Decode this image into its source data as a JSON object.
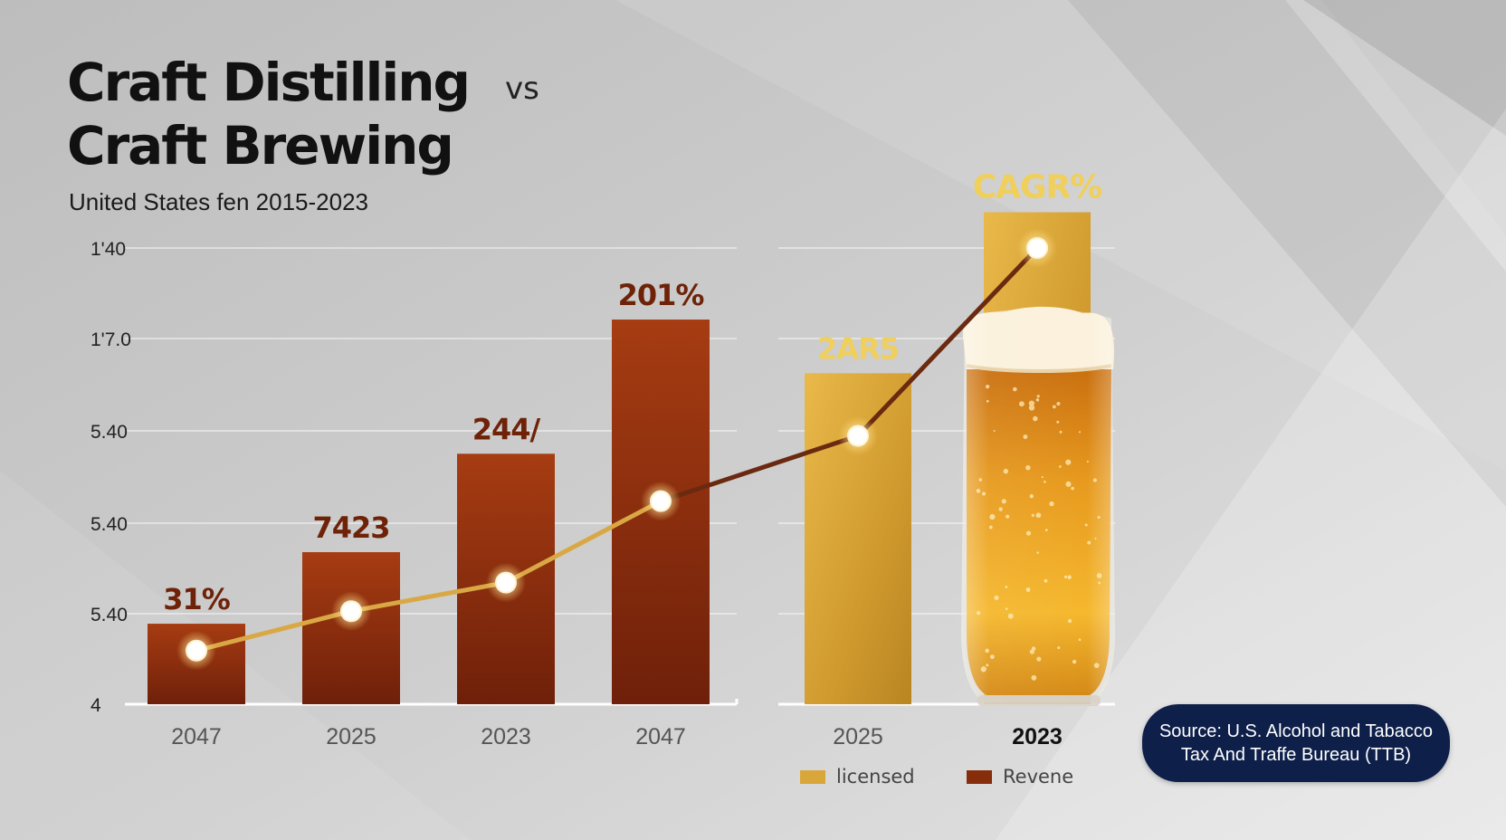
{
  "header": {
    "title_line1": "Craft Distilling",
    "title_vs": "vs",
    "title_line2": "Craft Brewing",
    "subtitle": "United States fen 2015-2023"
  },
  "source": {
    "line1": "Source: U.S. Alcohol and Tabacco",
    "line2": "Tax And Traffe Bureau (TTB)"
  },
  "legend": {
    "licensed_label": "licensed",
    "revenue_label": "Revene"
  },
  "colors": {
    "revenue_bar": "#862d0b",
    "licensed_bar": "#d9a63a",
    "line_left": "#d9a845",
    "line_right": "#6b2a10",
    "bar_label_dark": "#6e2308",
    "bar_label_gold": "#f0cf5a"
  },
  "icons": {
    "beer_glass": "beer-glass-icon"
  },
  "chart_data": {
    "type": "bar",
    "yticks": [
      "1'40",
      "1'7.0",
      "5.40",
      "5.40",
      "5.40",
      "4"
    ],
    "categories": [
      "2047",
      "2025",
      "2023",
      "2047",
      "2025",
      "2023"
    ],
    "bar_values": [
      0.9,
      1.7,
      2.8,
      4.3,
      3.7,
      5.5
    ],
    "bar_series": [
      "revenue",
      "revenue",
      "revenue",
      "revenue",
      "licensed",
      "licensed"
    ],
    "bar_labels": [
      "31%",
      "7423",
      "244/",
      "201%",
      "2AR5",
      "CAGR%"
    ],
    "line_values": [
      0.6,
      1.04,
      1.36,
      2.27,
      3.0,
      5.1
    ],
    "ylim": [
      0,
      5.1
    ]
  }
}
